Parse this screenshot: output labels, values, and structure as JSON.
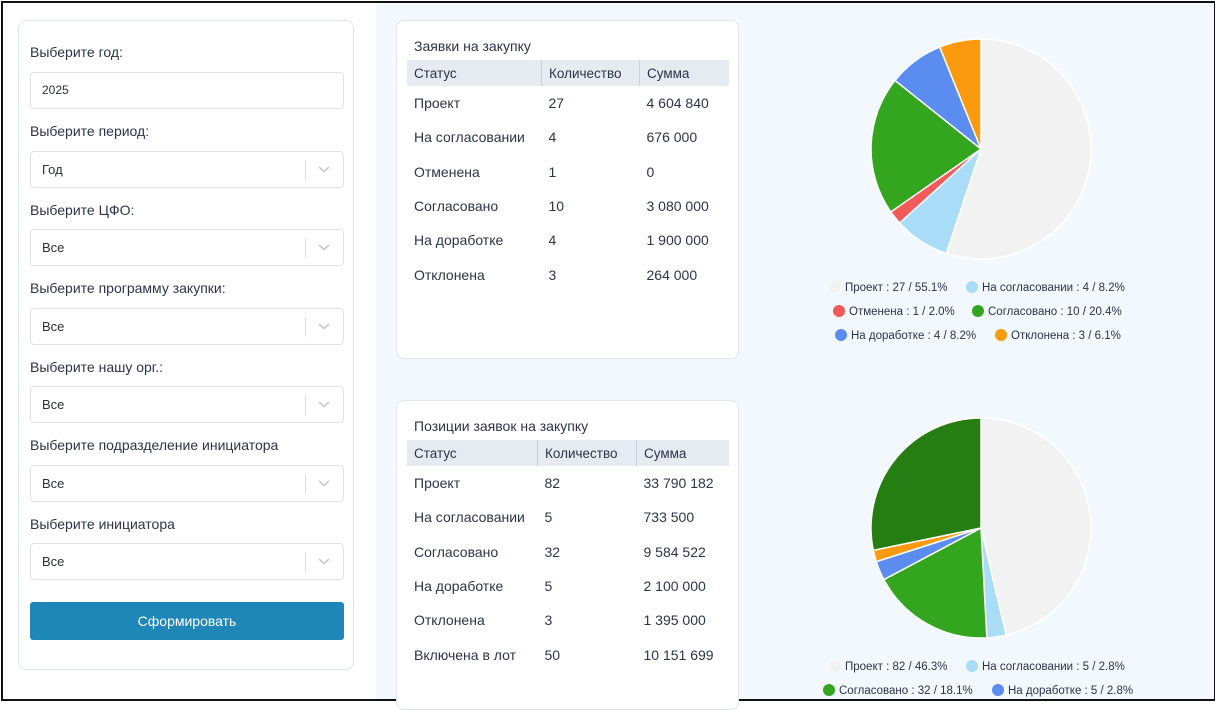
{
  "filters": {
    "year_label": "Выберите год:",
    "year_value": "2025",
    "period_label": "Выберите период:",
    "period_value": "Год",
    "cfo_label": "Выберите ЦФО:",
    "cfo_value": "Все",
    "program_label": "Выберите программу закупки:",
    "program_value": "Все",
    "org_label": "Выберите нашу орг.:",
    "org_value": "Все",
    "dept_label": "Выберите подразделение инициатора",
    "dept_value": "Все",
    "initiator_label": "Выберите инициатора",
    "initiator_value": "Все",
    "submit_label": "Сформировать"
  },
  "requests": {
    "title": "Заявки на закупку",
    "headers": [
      "Статус",
      "Количество",
      "Сумма"
    ],
    "rows": [
      [
        "Проект",
        "27",
        "4 604 840"
      ],
      [
        "На согласовании",
        "4",
        "676 000"
      ],
      [
        "Отменена",
        "1",
        "0"
      ],
      [
        "Согласовано",
        "10",
        "3 080 000"
      ],
      [
        "На доработке",
        "4",
        "1 900 000"
      ],
      [
        "Отклонена",
        "3",
        "264 000"
      ]
    ]
  },
  "positions": {
    "title": "Позиции заявок на закупку",
    "headers": [
      "Статус",
      "Количество",
      "Сумма"
    ],
    "rows": [
      [
        "Проект",
        "82",
        "33 790 182"
      ],
      [
        "На согласовании",
        "5",
        "733 500"
      ],
      [
        "Согласовано",
        "32",
        "9 584 522"
      ],
      [
        "На доработке",
        "5",
        "2 100 000"
      ],
      [
        "Отклонена",
        "3",
        "1 395 000"
      ],
      [
        "Включена в лот",
        "50",
        "10 151 699"
      ]
    ]
  },
  "legend_requests": [
    {
      "label": "Проект : 27 / 55.1%",
      "color": "#f2f2f2"
    },
    {
      "label": "На согласовании : 4 / 8.2%",
      "color": "#a9dcf7"
    },
    {
      "label": "Отменена : 1 / 2.0%",
      "color": "#f25a5a"
    },
    {
      "label": "Согласовано : 10 / 20.4%",
      "color": "#33a51f"
    },
    {
      "label": "На доработке : 4 / 8.2%",
      "color": "#5b8cf0"
    },
    {
      "label": "Отклонена : 3 / 6.1%",
      "color": "#fb9a0f"
    }
  ],
  "legend_positions": [
    {
      "label": "Проект : 82 / 46.3%",
      "color": "#f2f2f2"
    },
    {
      "label": "На согласовании : 5 / 2.8%",
      "color": "#a9dcf7"
    },
    {
      "label": "Согласовано : 32 / 18.1%",
      "color": "#33a51f"
    },
    {
      "label": "На доработке : 5 / 2.8%",
      "color": "#5b8cf0"
    }
  ],
  "chart_data": [
    {
      "type": "pie",
      "categories": [
        "Проект",
        "На согласовании",
        "Отменена",
        "Согласовано",
        "На доработке",
        "Отклонена"
      ],
      "values": [
        27,
        4,
        1,
        10,
        4,
        3
      ],
      "colors": [
        "#f2f2f2",
        "#a9dcf7",
        "#f25a5a",
        "#33a51f",
        "#5b8cf0",
        "#fb9a0f"
      ],
      "legend": "bottom"
    },
    {
      "type": "pie",
      "categories": [
        "Проект",
        "На согласовании",
        "Согласовано",
        "На доработке",
        "Отклонена",
        "Включена в лот"
      ],
      "values": [
        82,
        5,
        32,
        5,
        3,
        50
      ],
      "colors": [
        "#f2f2f2",
        "#a9dcf7",
        "#33a51f",
        "#5b8cf0",
        "#fb9a0f",
        "#267d12"
      ],
      "legend": "bottom"
    }
  ]
}
